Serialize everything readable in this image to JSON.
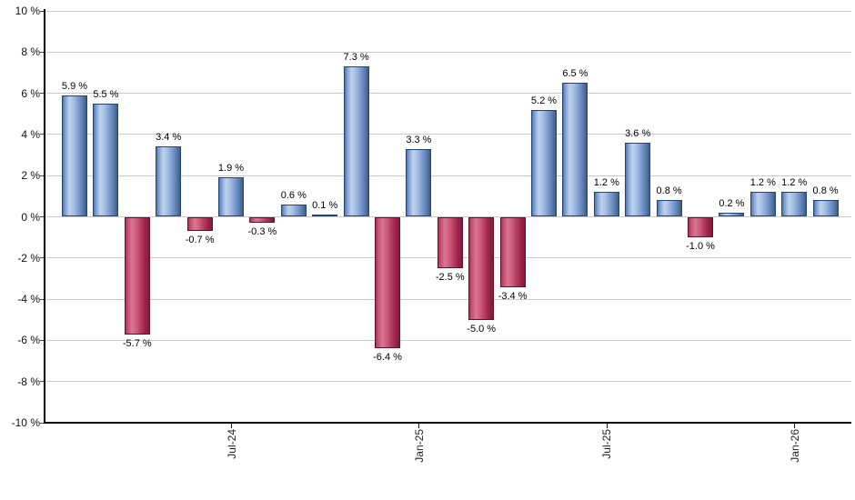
{
  "chart_data": {
    "type": "bar",
    "title": "",
    "xlabel": "",
    "ylabel": "",
    "ylim": [
      -10,
      10
    ],
    "ytick_interval": 2,
    "grid": true,
    "legend": false,
    "yticks": [
      {
        "value": 10,
        "label": "10 %"
      },
      {
        "value": 8,
        "label": "8 %"
      },
      {
        "value": 6,
        "label": "6 %"
      },
      {
        "value": 4,
        "label": "4 %"
      },
      {
        "value": 2,
        "label": "2 %"
      },
      {
        "value": 0,
        "label": "0 %"
      },
      {
        "value": -2,
        "label": "-2 %"
      },
      {
        "value": -4,
        "label": "-4 %"
      },
      {
        "value": -6,
        "label": "-6 %"
      },
      {
        "value": -8,
        "label": "-8 %"
      },
      {
        "value": -10,
        "label": "-10 %"
      }
    ],
    "bars": [
      {
        "value": 5.9,
        "label": "5.9 %"
      },
      {
        "value": 5.5,
        "label": "5.5 %"
      },
      {
        "value": -5.7,
        "label": "-5.7 %"
      },
      {
        "value": 3.4,
        "label": "3.4 %"
      },
      {
        "value": -0.7,
        "label": "-0.7 %"
      },
      {
        "value": 1.9,
        "label": "1.9 %"
      },
      {
        "value": -0.3,
        "label": "-0.3 %"
      },
      {
        "value": 0.6,
        "label": "0.6 %"
      },
      {
        "value": 0.1,
        "label": "0.1 %"
      },
      {
        "value": 7.3,
        "label": "7.3 %"
      },
      {
        "value": -6.4,
        "label": "-6.4 %"
      },
      {
        "value": 3.3,
        "label": "3.3 %"
      },
      {
        "value": -2.5,
        "label": "-2.5 %"
      },
      {
        "value": -5.0,
        "label": "-5.0 %"
      },
      {
        "value": -3.4,
        "label": "-3.4 %"
      },
      {
        "value": 5.2,
        "label": "5.2 %"
      },
      {
        "value": 6.5,
        "label": "6.5 %"
      },
      {
        "value": 1.2,
        "label": "1.2 %"
      },
      {
        "value": 3.6,
        "label": "3.6 %"
      },
      {
        "value": 0.8,
        "label": "0.8 %"
      },
      {
        "value": -1.0,
        "label": "-1.0 %"
      },
      {
        "value": 0.2,
        "label": "0.2 %"
      },
      {
        "value": 1.2,
        "label": "1.2 %"
      },
      {
        "value": 1.2,
        "label": "1.2 %"
      },
      {
        "value": 0.8,
        "label": "0.8 %"
      }
    ],
    "xticks": [
      {
        "bar_index": 5,
        "label": "Jul-24"
      },
      {
        "bar_index": 11,
        "label": "Jan-25"
      },
      {
        "bar_index": 17,
        "label": "Jul-25"
      },
      {
        "bar_index": 23,
        "label": "Jan-26"
      }
    ],
    "colors": {
      "positive_bar": "#88A9DC",
      "positive_edge": "#234673",
      "negative_bar": "#C14367",
      "negative_edge": "#64102D",
      "gridline": "#C9C9C9",
      "axis": "#000000",
      "label_text": "#000000"
    }
  }
}
